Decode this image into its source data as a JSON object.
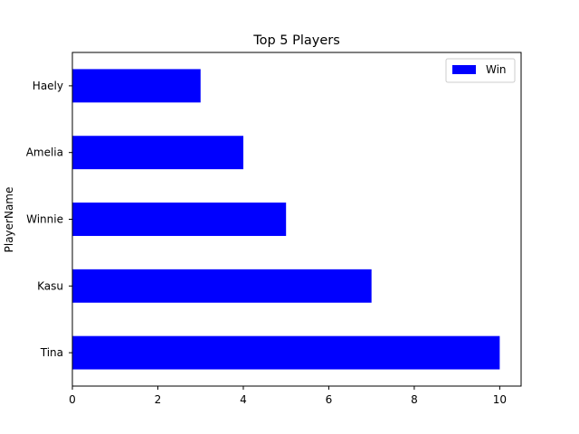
{
  "chart_data": {
    "type": "bar",
    "orientation": "horizontal",
    "title": "Top 5 Players",
    "xlabel": "",
    "ylabel": "PlayerName",
    "categories": [
      "Tina",
      "Kasu",
      "Winnie",
      "Amelia",
      "Haely"
    ],
    "series": [
      {
        "name": "Win",
        "values": [
          10,
          7,
          5,
          4,
          3
        ],
        "color": "#0000ff"
      }
    ],
    "xlim": [
      0,
      10.5
    ],
    "xticks": [
      0,
      2,
      4,
      6,
      8,
      10
    ],
    "grid": false,
    "legend_position": "top-right"
  }
}
